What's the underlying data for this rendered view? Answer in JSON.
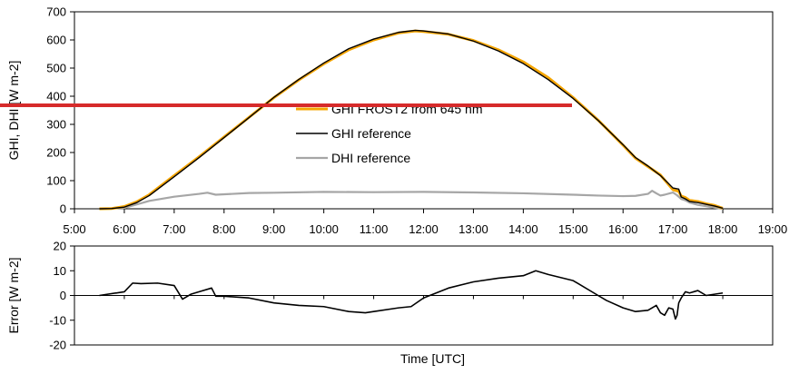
{
  "chart_data": [
    {
      "type": "line",
      "ylabel": "GHI, DHI [W m-2]",
      "xlim": [
        "5:00",
        "19:00"
      ],
      "ylim": [
        0,
        700
      ],
      "x_ticks": [
        "5:00",
        "6:00",
        "7:00",
        "8:00",
        "9:00",
        "10:00",
        "11:00",
        "12:00",
        "13:00",
        "14:00",
        "15:00",
        "16:00",
        "17:00",
        "18:00",
        "19:00"
      ],
      "y_ticks": [
        "0",
        "100",
        "200",
        "300",
        "400",
        "500",
        "600",
        "700"
      ],
      "legend_position": "center",
      "series": [
        {
          "name": "GHI FROST2 from 645 nm",
          "color": "#f5a500",
          "x": [
            "5:30",
            "5:45",
            "6:00",
            "6:15",
            "6:30",
            "7:00",
            "7:30",
            "8:00",
            "8:30",
            "9:00",
            "9:30",
            "10:00",
            "10:30",
            "11:00",
            "11:30",
            "11:50",
            "12:00",
            "12:30",
            "13:00",
            "13:30",
            "14:00",
            "14:30",
            "15:00",
            "15:30",
            "16:00",
            "16:15",
            "16:30",
            "16:45",
            "17:00",
            "17:07",
            "17:10",
            "17:15",
            "17:20",
            "17:30",
            "17:40",
            "17:50",
            "18:00"
          ],
          "y": [
            0,
            1,
            8,
            25,
            50,
            118,
            185,
            255,
            325,
            395,
            458,
            515,
            565,
            600,
            625,
            632,
            630,
            620,
            598,
            565,
            522,
            466,
            395,
            315,
            226,
            180,
            150,
            120,
            68,
            62,
            45,
            40,
            30,
            26,
            18,
            12,
            2
          ]
        },
        {
          "name": "GHI reference",
          "color": "#000000",
          "x": [
            "5:30",
            "5:45",
            "6:00",
            "6:15",
            "6:30",
            "7:00",
            "7:30",
            "8:00",
            "8:30",
            "9:00",
            "9:30",
            "10:00",
            "10:30",
            "11:00",
            "11:30",
            "11:50",
            "12:00",
            "12:30",
            "13:00",
            "13:30",
            "14:00",
            "14:30",
            "15:00",
            "15:30",
            "16:00",
            "16:15",
            "16:30",
            "16:45",
            "17:00",
            "17:07",
            "17:10",
            "17:15",
            "17:20",
            "17:30",
            "17:40",
            "17:50",
            "18:00"
          ],
          "y": [
            0,
            1,
            6,
            22,
            47,
            114,
            182,
            253,
            324,
            396,
            460,
            518,
            569,
            603,
            627,
            634,
            632,
            621,
            596,
            561,
            516,
            459,
            392,
            314,
            228,
            182,
            152,
            118,
            74,
            70,
            42,
            35,
            26,
            22,
            16,
            10,
            2
          ]
        },
        {
          "name": "DHI reference",
          "color": "#a6a6a6",
          "x": [
            "5:30",
            "6:00",
            "6:30",
            "7:00",
            "7:30",
            "7:40",
            "7:50",
            "8:30",
            "9:00",
            "10:00",
            "11:00",
            "12:00",
            "13:00",
            "14:00",
            "15:00",
            "15:30",
            "16:00",
            "16:15",
            "16:30",
            "16:35",
            "16:40",
            "16:45",
            "16:50",
            "17:00",
            "17:05",
            "17:10",
            "17:15",
            "17:20",
            "17:30",
            "17:40",
            "17:50",
            "18:00"
          ],
          "y": [
            0,
            3,
            28,
            43,
            53,
            57,
            50,
            56,
            57,
            60,
            59,
            60,
            58,
            55,
            50,
            47,
            45,
            46,
            53,
            64,
            55,
            47,
            50,
            58,
            48,
            35,
            30,
            22,
            14,
            9,
            4,
            0
          ]
        }
      ]
    },
    {
      "type": "line",
      "xlabel": "Time [UTC]",
      "ylabel": "Error [W m-2]",
      "ylim": [
        -20,
        20
      ],
      "y_ticks": [
        "-20",
        "-10",
        "0",
        "10",
        "20"
      ],
      "series": [
        {
          "color": "#000000",
          "x": [
            "5:30",
            "6:00",
            "6:10",
            "6:20",
            "6:40",
            "7:00",
            "7:10",
            "7:20",
            "7:30",
            "7:45",
            "7:50",
            "8:00",
            "8:30",
            "9:00",
            "9:30",
            "10:00",
            "10:30",
            "10:50",
            "11:00",
            "11:30",
            "11:45",
            "12:00",
            "12:30",
            "13:00",
            "13:30",
            "14:00",
            "14:15",
            "14:30",
            "15:00",
            "15:30",
            "15:40",
            "16:00",
            "16:15",
            "16:30",
            "16:40",
            "16:45",
            "16:50",
            "16:55",
            "17:00",
            "17:03",
            "17:05",
            "17:07",
            "17:10",
            "17:15",
            "17:20",
            "17:30",
            "17:40",
            "17:50",
            "18:00"
          ],
          "y": [
            0,
            1.5,
            5,
            4.8,
            5,
            4,
            -1.5,
            0.5,
            1.5,
            3,
            -0.3,
            -0.3,
            -1,
            -3,
            -4,
            -4.5,
            -6.5,
            -7,
            -6.5,
            -5,
            -4.5,
            -1,
            3,
            5.5,
            7,
            8,
            10,
            8.5,
            6,
            0,
            -2,
            -5,
            -6.5,
            -6,
            -4,
            -7,
            -8,
            -5,
            -5.5,
            -9.5,
            -8,
            -3,
            -1,
            1.5,
            1,
            2,
            0,
            0.5,
            1
          ]
        }
      ]
    }
  ]
}
